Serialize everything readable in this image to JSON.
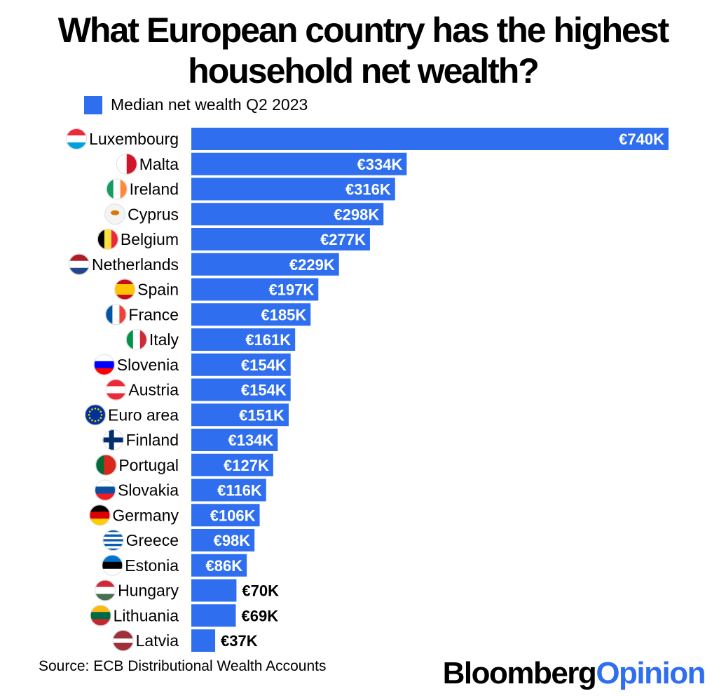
{
  "chart_data": {
    "type": "bar",
    "orientation": "horizontal",
    "title": "What European country has the highest household net wealth?",
    "legend": [
      "Median net wealth Q2 2023"
    ],
    "categories": [
      "Luxembourg",
      "Malta",
      "Ireland",
      "Cyprus",
      "Belgium",
      "Netherlands",
      "Spain",
      "France",
      "Italy",
      "Slovenia",
      "Austria",
      "Euro area",
      "Finland",
      "Portugal",
      "Slovakia",
      "Germany",
      "Greece",
      "Estonia",
      "Hungary",
      "Lithuania",
      "Latvia"
    ],
    "series": [
      {
        "name": "Median net wealth Q2 2023",
        "values": [
          740,
          334,
          316,
          298,
          277,
          229,
          197,
          185,
          161,
          154,
          154,
          151,
          134,
          127,
          116,
          106,
          98,
          86,
          70,
          69,
          37
        ],
        "labels": [
          "€740K",
          "€334K",
          "€316K",
          "€298K",
          "€277K",
          "€229K",
          "€197K",
          "€185K",
          "€161K",
          "€154K",
          "€154K",
          "€151K",
          "€134K",
          "€127K",
          "€116K",
          "€106K",
          "€98K",
          "€86K",
          "€70K",
          "€69K",
          "€37K"
        ]
      }
    ],
    "bar_color": "#2f6fef",
    "xlim": [
      0,
      740
    ],
    "grid": false,
    "flag_icons": [
      "luxembourg-flag-icon",
      "malta-flag-icon",
      "ireland-flag-icon",
      "cyprus-flag-icon",
      "belgium-flag-icon",
      "netherlands-flag-icon",
      "spain-flag-icon",
      "france-flag-icon",
      "italy-flag-icon",
      "slovenia-flag-icon",
      "austria-flag-icon",
      "eu-flag-icon",
      "finland-flag-icon",
      "portugal-flag-icon",
      "slovakia-flag-icon",
      "germany-flag-icon",
      "greece-flag-icon",
      "estonia-flag-icon",
      "hungary-flag-icon",
      "lithuania-flag-icon",
      "latvia-flag-icon"
    ]
  },
  "footer": {
    "source": "Source: ECB Distributional Wealth Accounts",
    "brand_part1": "Bloomberg",
    "brand_part2": "Opinion"
  }
}
